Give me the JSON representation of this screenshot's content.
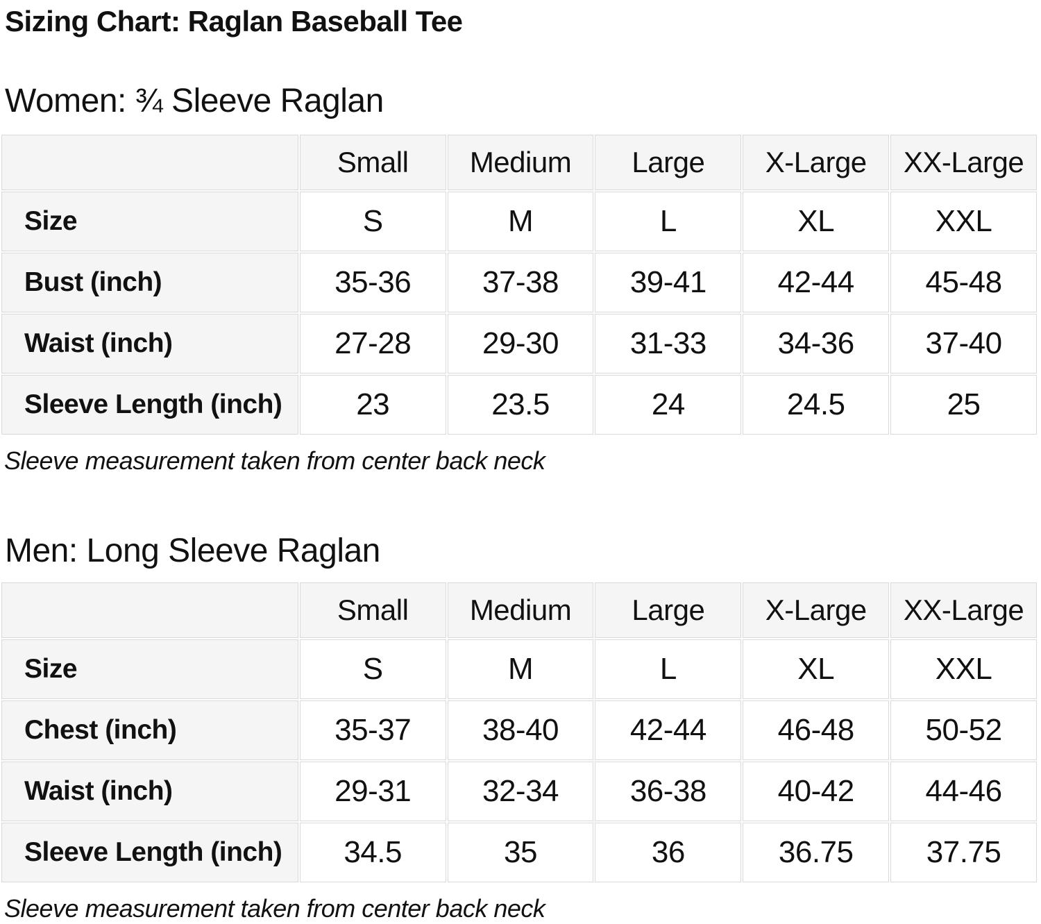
{
  "page": {
    "title": "Sizing Chart: Raglan Baseball Tee"
  },
  "style": {
    "text_color": "#111111",
    "header_cell_bg": "#f5f5f5",
    "data_cell_bg": "#ffffff",
    "cell_border_color": "#d9d9d9"
  },
  "sections": [
    {
      "heading": "Women: ¾ Sleeve Raglan",
      "table": {
        "columns": [
          "",
          "Small",
          "Medium",
          "Large",
          "X-Large",
          "XX-Large"
        ],
        "rows": [
          {
            "label": "Size",
            "values": [
              "S",
              "M",
              "L",
              "XL",
              "XXL"
            ]
          },
          {
            "label": "Bust (inch)",
            "values": [
              "35-36",
              "37-38",
              "39-41",
              "42-44",
              "45-48"
            ]
          },
          {
            "label": "Waist (inch)",
            "values": [
              "27-28",
              "29-30",
              "31-33",
              "34-36",
              "37-40"
            ]
          },
          {
            "label": "Sleeve Length (inch)",
            "values": [
              "23",
              "23.5",
              "24",
              "24.5",
              "25"
            ]
          }
        ]
      },
      "note": "Sleeve measurement taken from center back neck"
    },
    {
      "heading": "Men: Long Sleeve Raglan",
      "table": {
        "columns": [
          "",
          "Small",
          "Medium",
          "Large",
          "X-Large",
          "XX-Large"
        ],
        "rows": [
          {
            "label": "Size",
            "values": [
              "S",
              "M",
              "L",
              "XL",
              "XXL"
            ]
          },
          {
            "label": "Chest (inch)",
            "values": [
              "35-37",
              "38-40",
              "42-44",
              "46-48",
              "50-52"
            ]
          },
          {
            "label": "Waist (inch)",
            "values": [
              "29-31",
              "32-34",
              "36-38",
              "40-42",
              "44-46"
            ]
          },
          {
            "label": "Sleeve Length (inch)",
            "values": [
              "34.5",
              "35",
              "36",
              "36.75",
              "37.75"
            ]
          }
        ]
      },
      "note": "Sleeve measurement taken from center back neck"
    }
  ]
}
